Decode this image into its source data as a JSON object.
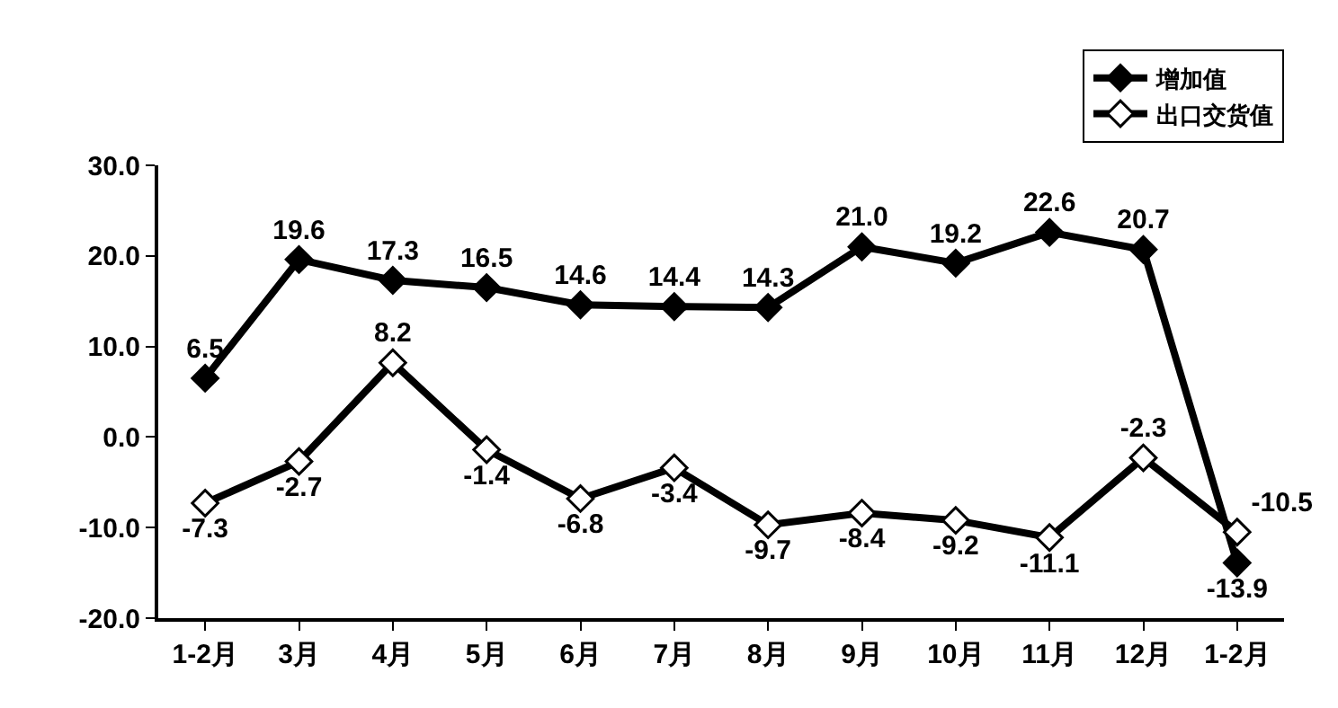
{
  "chart_data": {
    "type": "line",
    "categories": [
      "1-2月",
      "3月",
      "4月",
      "5月",
      "6月",
      "7月",
      "8月",
      "9月",
      "10月",
      "11月",
      "12月",
      "1-2月"
    ],
    "series": [
      {
        "name": "增加值",
        "color": "#000000",
        "values": [
          6.5,
          19.6,
          17.3,
          16.5,
          14.6,
          14.4,
          14.3,
          21.0,
          19.2,
          22.6,
          20.7,
          -13.9
        ],
        "value_labels": [
          "6.5",
          "19.6",
          "17.3",
          "16.5",
          "14.6",
          "14.4",
          "14.3",
          "21.0",
          "19.2",
          "22.6",
          "20.7",
          "-13.9"
        ]
      },
      {
        "name": "出口交货值",
        "color": "#000000",
        "values": [
          -7.3,
          -2.7,
          8.2,
          -1.4,
          -6.8,
          -3.4,
          -9.7,
          -8.4,
          -9.2,
          -11.1,
          -2.3,
          -10.5
        ],
        "value_labels": [
          "-7.3",
          "-2.7",
          "8.2",
          "-1.4",
          "-6.8",
          "-3.4",
          "-9.7",
          "-8.4",
          "-9.2",
          "-11.1",
          "-2.3",
          "-10.5"
        ]
      }
    ],
    "ylim": [
      -20,
      30
    ],
    "yticks": [
      {
        "value": -20,
        "label": "-20.0"
      },
      {
        "value": -10,
        "label": "-10.0"
      },
      {
        "value": 0,
        "label": "0.0"
      },
      {
        "value": 10,
        "label": "10.0"
      },
      {
        "value": 20,
        "label": "20.0"
      },
      {
        "value": 30,
        "label": "30.0"
      }
    ],
    "grid": false,
    "legend": "top right",
    "marker": "diamond",
    "line_style": "solid"
  }
}
